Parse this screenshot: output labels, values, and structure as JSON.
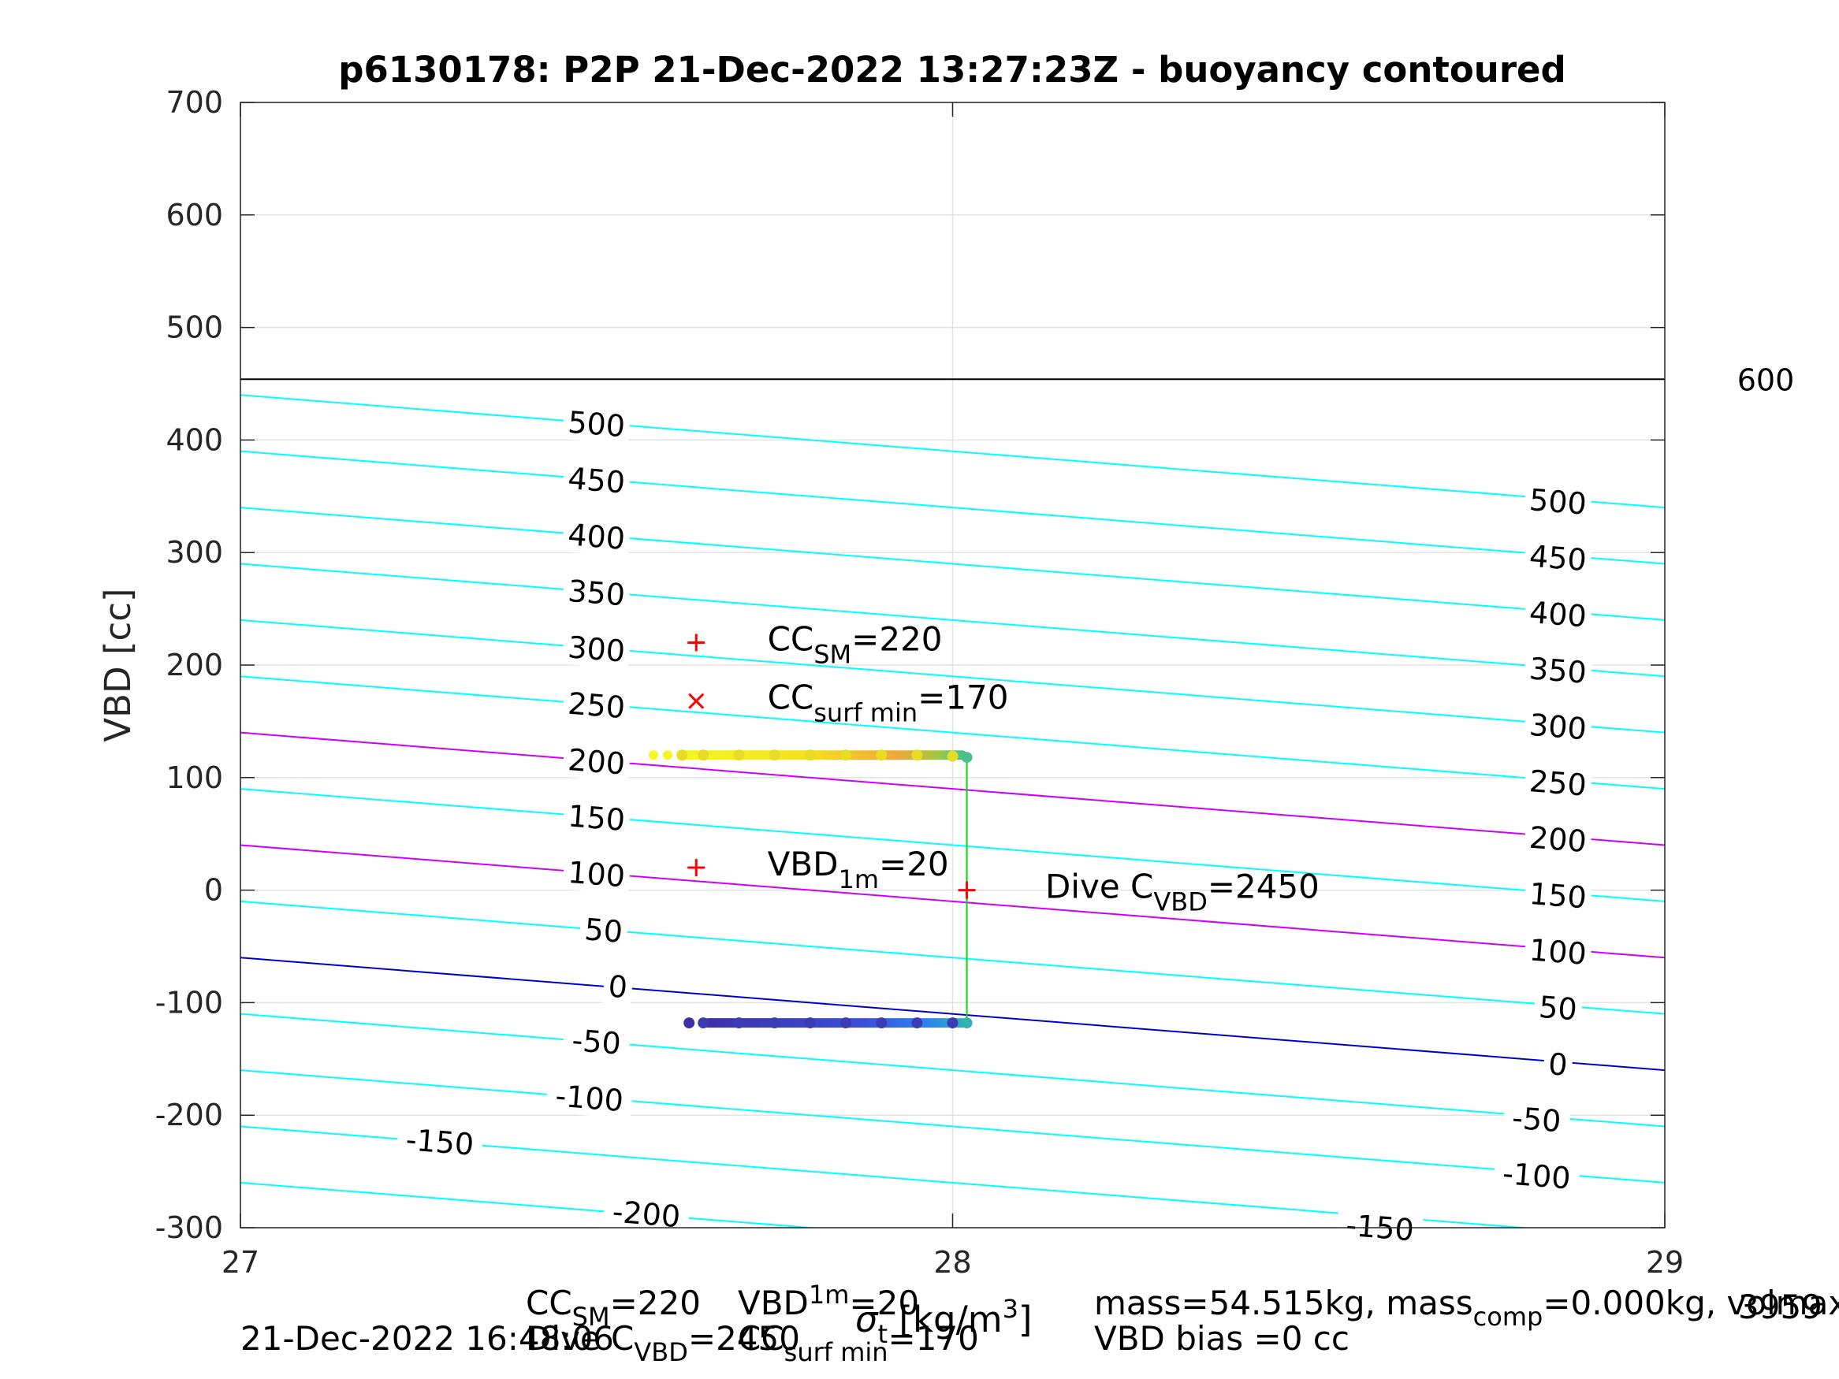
{
  "chart_data": {
    "type": "scatter",
    "title": "p6130178: P2P 21-Dec-2022 13:27:23Z - buoyancy contoured",
    "xlabel": "σ_t [kg/m^3]",
    "ylabel": "VBD [cc]",
    "xlim": [
      27,
      29
    ],
    "ylim": [
      -300,
      700
    ],
    "x_ticks": [
      "27",
      "28",
      "29"
    ],
    "y_ticks": [
      "-300",
      "-200",
      "-100",
      "0",
      "100",
      "200",
      "300",
      "400",
      "500",
      "600",
      "700"
    ],
    "grid": true,
    "contour_slope_cc_per_sigma": -50,
    "contours": [
      {
        "level": -200,
        "vbd_at_x27": -260,
        "color": "#00ffff"
      },
      {
        "level": -150,
        "vbd_at_x27": -210,
        "color": "#00ffff"
      },
      {
        "level": -100,
        "vbd_at_x27": -160,
        "color": "#00ffff"
      },
      {
        "level": -50,
        "vbd_at_x27": -110,
        "color": "#00ffff"
      },
      {
        "level": 0,
        "vbd_at_x27": -60,
        "color": "#0000cc"
      },
      {
        "level": 50,
        "vbd_at_x27": -10,
        "color": "#00ffff"
      },
      {
        "level": 100,
        "vbd_at_x27": 40,
        "color": "#cc00ff"
      },
      {
        "level": 150,
        "vbd_at_x27": 90,
        "color": "#00ffff"
      },
      {
        "level": 200,
        "vbd_at_x27": 140,
        "color": "#cc00ff"
      },
      {
        "level": 250,
        "vbd_at_x27": 190,
        "color": "#00ffff"
      },
      {
        "level": 300,
        "vbd_at_x27": 240,
        "color": "#00ffff"
      },
      {
        "level": 350,
        "vbd_at_x27": 290,
        "color": "#00ffff"
      },
      {
        "level": 400,
        "vbd_at_x27": 340,
        "color": "#00ffff"
      },
      {
        "level": 450,
        "vbd_at_x27": 390,
        "color": "#00ffff"
      },
      {
        "level": 500,
        "vbd_at_x27": 440,
        "color": "#00ffff"
      }
    ],
    "horizontal_line": {
      "vbd": 454,
      "label": "600",
      "color": "#000000"
    },
    "contour_labels_left": [
      {
        "text": "500",
        "x": 27.5,
        "y": 414
      },
      {
        "text": "450",
        "x": 27.5,
        "y": 364
      },
      {
        "text": "400",
        "x": 27.5,
        "y": 314
      },
      {
        "text": "350",
        "x": 27.5,
        "y": 264
      },
      {
        "text": "300",
        "x": 27.5,
        "y": 214
      },
      {
        "text": "250",
        "x": 27.5,
        "y": 164
      },
      {
        "text": "200",
        "x": 27.5,
        "y": 114
      },
      {
        "text": "150",
        "x": 27.5,
        "y": 64
      },
      {
        "text": "100",
        "x": 27.5,
        "y": 14
      },
      {
        "text": "50",
        "x": 27.51,
        "y": -36
      },
      {
        "text": "0",
        "x": 27.53,
        "y": -86
      },
      {
        "text": "-50",
        "x": 27.5,
        "y": -135
      },
      {
        "text": "-100",
        "x": 27.49,
        "y": -185
      },
      {
        "text": "-150",
        "x": 27.28,
        "y": -224
      },
      {
        "text": "-200",
        "x": 27.57,
        "y": -288
      }
    ],
    "contour_labels_right": [
      {
        "text": "500",
        "x": 28.85,
        "y": 345
      },
      {
        "text": "450",
        "x": 28.85,
        "y": 295
      },
      {
        "text": "400",
        "x": 28.85,
        "y": 245
      },
      {
        "text": "350",
        "x": 28.85,
        "y": 195
      },
      {
        "text": "300",
        "x": 28.85,
        "y": 145
      },
      {
        "text": "250",
        "x": 28.85,
        "y": 95
      },
      {
        "text": "200",
        "x": 28.85,
        "y": 45
      },
      {
        "text": "150",
        "x": 28.85,
        "y": -5
      },
      {
        "text": "100",
        "x": 28.85,
        "y": -55
      },
      {
        "text": "50",
        "x": 28.85,
        "y": -105
      },
      {
        "text": "0",
        "x": 28.85,
        "y": -155
      },
      {
        "text": "-50",
        "x": 28.82,
        "y": -204
      },
      {
        "text": "-100",
        "x": 28.82,
        "y": -254
      },
      {
        "text": "-150",
        "x": 28.6,
        "y": -300
      }
    ],
    "series": [
      {
        "x": [
          27.62,
          27.65,
          27.7,
          27.75,
          27.8,
          27.85,
          27.9,
          27.95,
          28.0,
          28.02
        ],
        "y": [
          120,
          120,
          120,
          120,
          120,
          120,
          120,
          120,
          119,
          118
        ]
      },
      {
        "x": [
          27.65,
          27.7,
          27.75,
          27.8,
          27.85,
          27.9,
          27.95,
          28.0,
          28.02
        ],
        "y": [
          -118,
          -118,
          -118,
          -118,
          -118,
          -118,
          -118,
          -118,
          -118
        ]
      }
    ],
    "vertical_connector": {
      "x": 28.02,
      "y_top": 118,
      "y_bottom": -118,
      "color": "#00dd00"
    },
    "markers": [
      {
        "marker": "+",
        "x": 27.64,
        "y": 220,
        "color": "#ff0000"
      },
      {
        "marker": "x",
        "x": 27.64,
        "y": 168,
        "color": "#ff0000"
      },
      {
        "marker": "+",
        "x": 27.64,
        "y": 20,
        "color": "#ff0000"
      },
      {
        "marker": "+",
        "x": 28.02,
        "y": 0,
        "color": "#ff0000"
      }
    ],
    "annotations": [
      {
        "pre": "CC",
        "sub": "SM",
        "post": "=220",
        "x": 27.74,
        "y": 220
      },
      {
        "pre": "CC",
        "sub": "surf min",
        "post": "=170",
        "x": 27.74,
        "y": 168
      },
      {
        "pre": "VBD",
        "sub": "1m",
        "post": "=20",
        "x": 27.74,
        "y": 20
      },
      {
        "pre": "Dive C",
        "sub": "VBD",
        "post": "=2450",
        "x": 28.13,
        "y": 0
      }
    ]
  },
  "footer": {
    "line1_cc": "CC",
    "line1_cc_sub": "SM",
    "line1_cc_val": "=220",
    "line1_vbd": "VBD",
    "line1_vbd_sub": "1m",
    "line1_vbd_val": "=20",
    "line2_dive": "Dive C",
    "line2_dive_sub": "VBD",
    "line2_dive_val": "=2450",
    "line2_cc": "CC",
    "line2_cc_sub": "surf min",
    "line2_cc_val": "=170",
    "timestamp": "21-Dec-2022 16:48:06",
    "mass_pre": "mass=54.515kg, mass",
    "mass_sub": "comp",
    "mass_post": "=0.000kg, volmax",
    "volmax_value": "3959",
    "vbd_bias": "VBD bias =0 cc"
  }
}
